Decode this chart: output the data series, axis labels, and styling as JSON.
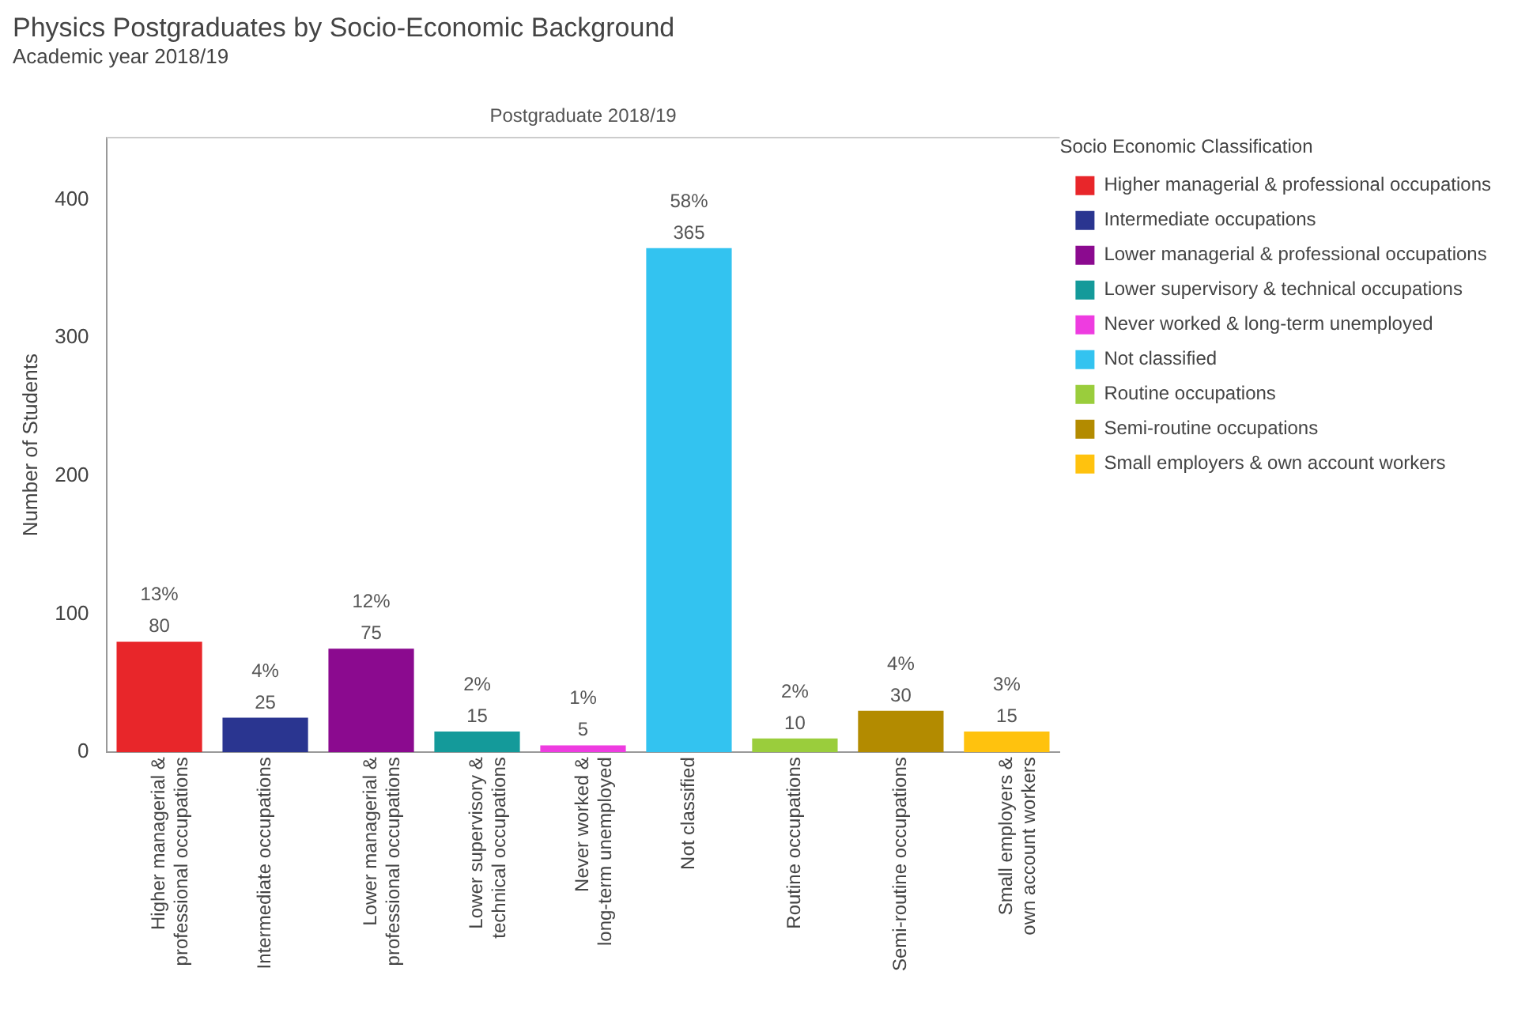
{
  "chart_data": {
    "type": "bar",
    "title": "Physics Postgraduates by Socio-Economic Background",
    "subtitle": "Academic year 2018/19",
    "ylabel": "Number of Students",
    "legend_title": "Socio Economic Classification",
    "annotations": [
      "Postgraduate 2018/19",
      {
        "text": "13%",
        "x": "Higher managerial & professional occupations",
        "y": 80
      },
      {
        "text": "4%",
        "x": "Intermediate occupations",
        "y": 25
      },
      {
        "text": "12%",
        "x": "Lower managerial & professional occupations",
        "y": 75
      },
      {
        "text": "2%",
        "x": "Lower supervisory & technical occupations",
        "y": 15
      },
      {
        "text": "1%",
        "x": "Never worked & long-term unemployed",
        "y": 5
      },
      {
        "text": "58%",
        "x": "Not classified",
        "y": 365
      },
      {
        "text": "2%",
        "x": "Routine occupations",
        "y": 10
      },
      {
        "text": "4%",
        "x": "Semi-routine occupations",
        "y": 30
      },
      {
        "text": "3%",
        "x": "Small employers & own account workers",
        "y": 15
      }
    ],
    "categories": [
      "Higher managerial & professional occupations",
      "Intermediate occupations",
      "Lower managerial & professional occupations",
      "Lower supervisory & technical occupations",
      "Never worked & long-term unemployed",
      "Not classified",
      "Routine occupations",
      "Semi-routine occupations",
      "Small employers & own account workers"
    ],
    "series": [
      {
        "name": "Higher managerial & professional occupations",
        "color": "#e8262a",
        "values": [
          80,
          null,
          null,
          null,
          null,
          null,
          null,
          null,
          null
        ]
      },
      {
        "name": "Intermediate occupations",
        "color": "#2a3590",
        "values": [
          null,
          25,
          null,
          null,
          null,
          null,
          null,
          null,
          null
        ]
      },
      {
        "name": "Lower managerial & professional occupations",
        "color": "#8b0a8f",
        "values": [
          null,
          null,
          75,
          null,
          null,
          null,
          null,
          null,
          null
        ]
      },
      {
        "name": "Lower supervisory & technical occupations",
        "color": "#149a9a",
        "values": [
          null,
          null,
          null,
          15,
          null,
          null,
          null,
          null,
          null
        ]
      },
      {
        "name": "Never worked & long-term unemployed",
        "color": "#ee3ce0",
        "values": [
          null,
          null,
          null,
          null,
          5,
          null,
          null,
          null,
          null
        ]
      },
      {
        "name": "Not classified",
        "color": "#33c3f0",
        "values": [
          null,
          null,
          null,
          null,
          null,
          365,
          null,
          null,
          null
        ]
      },
      {
        "name": "Routine occupations",
        "color": "#9acd3c",
        "values": [
          null,
          null,
          null,
          null,
          null,
          null,
          10,
          null,
          null
        ]
      },
      {
        "name": "Semi-routine occupations",
        "color": "#b38b00",
        "values": [
          null,
          null,
          null,
          null,
          null,
          null,
          null,
          30,
          null
        ]
      },
      {
        "name": "Small employers & own account workers",
        "color": "#ffc20e",
        "values": [
          null,
          null,
          null,
          null,
          null,
          null,
          null,
          null,
          15
        ]
      }
    ],
    "stacked": true,
    "data_labels": true,
    "ylim": [
      0,
      445
    ],
    "yticks": [
      0,
      100,
      200,
      300,
      400
    ],
    "grid": false,
    "legend": "top right"
  }
}
